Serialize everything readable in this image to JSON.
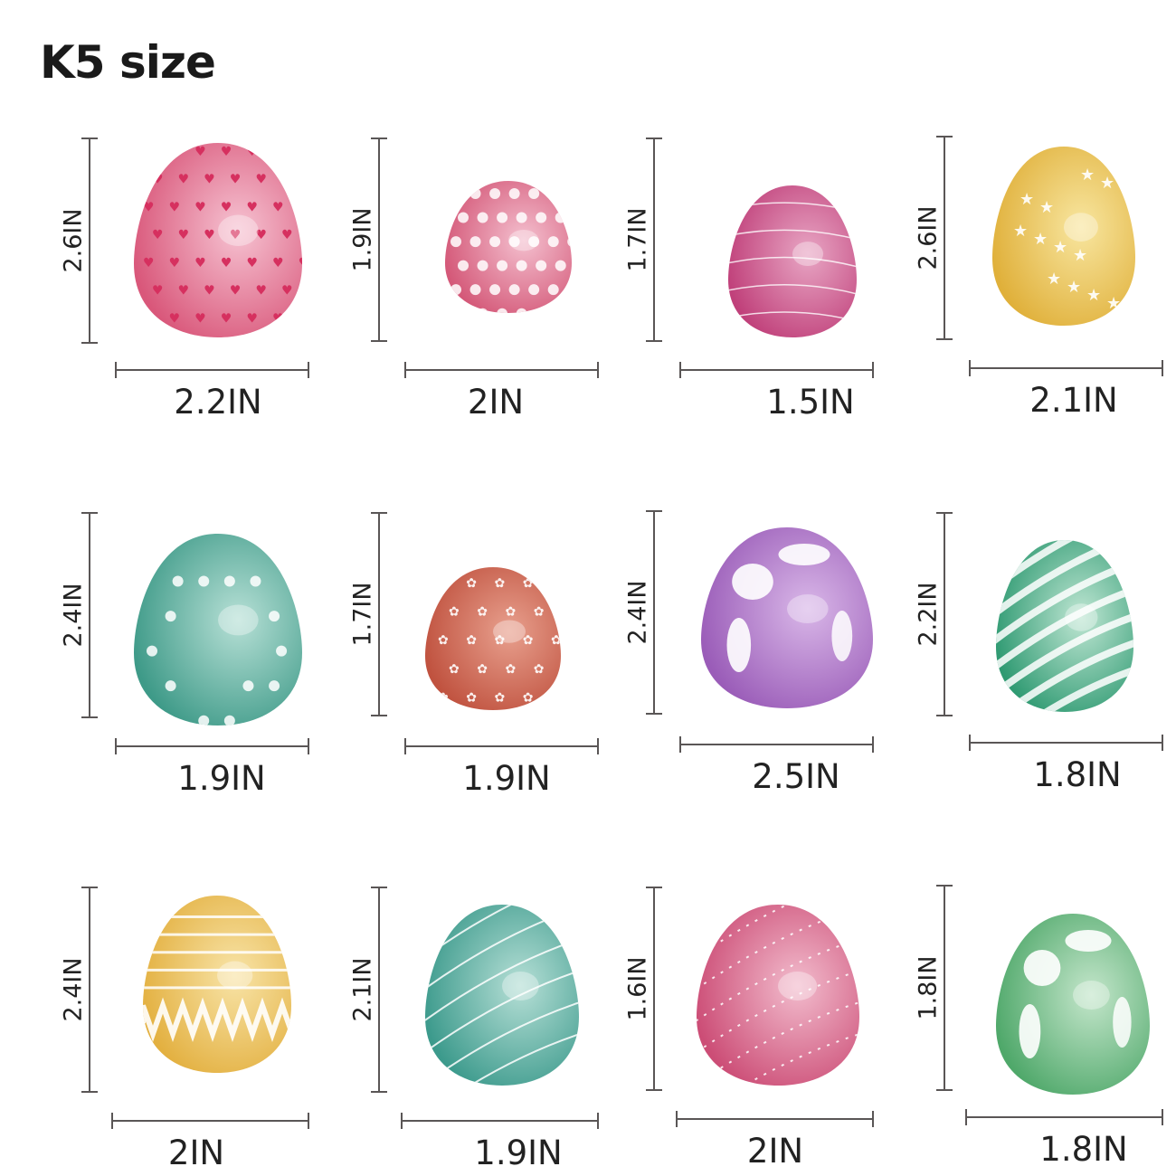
{
  "title": "K5 size",
  "eggs": [
    {
      "height_label": "2.6IN",
      "width_label": "2.2IN",
      "pattern": "hearts",
      "base_color": "#d9577a",
      "light_color": "#f6c3d2"
    },
    {
      "height_label": "1.9IN",
      "width_label": "2IN",
      "pattern": "polka-dots",
      "base_color": "#d45878",
      "light_color": "#f4c0cf"
    },
    {
      "height_label": "1.7IN",
      "width_label": "1.5IN",
      "pattern": "swirl-lines",
      "base_color": "#c0407a",
      "light_color": "#e8a6c4"
    },
    {
      "height_label": "2.6IN",
      "width_label": "2.1IN",
      "pattern": "stars",
      "base_color": "#e0b03a",
      "light_color": "#f8e6a0"
    },
    {
      "height_label": "2.4IN",
      "width_label": "1.9IN",
      "pattern": "dot-ring",
      "base_color": "#3e9a88",
      "light_color": "#b7e0d6"
    },
    {
      "height_label": "1.7IN",
      "width_label": "1.9IN",
      "pattern": "flowers",
      "base_color": "#c0523f",
      "light_color": "#e8a08e"
    },
    {
      "height_label": "2.4IN",
      "width_label": "2.5IN",
      "pattern": "patches",
      "base_color": "#9a5cb8",
      "light_color": "#d9b7e8"
    },
    {
      "height_label": "2.2IN",
      "width_label": "1.8IN",
      "pattern": "stripes",
      "base_color": "#2f9a72",
      "light_color": "#bfe6d3"
    },
    {
      "height_label": "2.4IN",
      "width_label": "2IN",
      "pattern": "zigzag",
      "base_color": "#e3b040",
      "light_color": "#f8e4a8"
    },
    {
      "height_label": "2.1IN",
      "width_label": "1.9IN",
      "pattern": "diagonal-lines",
      "base_color": "#3c9a8c",
      "light_color": "#b6dfd6"
    },
    {
      "height_label": "1.6IN",
      "width_label": "2IN",
      "pattern": "dotted-lines",
      "base_color": "#cc4d76",
      "light_color": "#f2bccd"
    },
    {
      "height_label": "1.8IN",
      "width_label": "1.8IN",
      "pattern": "patches",
      "base_color": "#4fa86a",
      "light_color": "#c4e6cb"
    }
  ]
}
